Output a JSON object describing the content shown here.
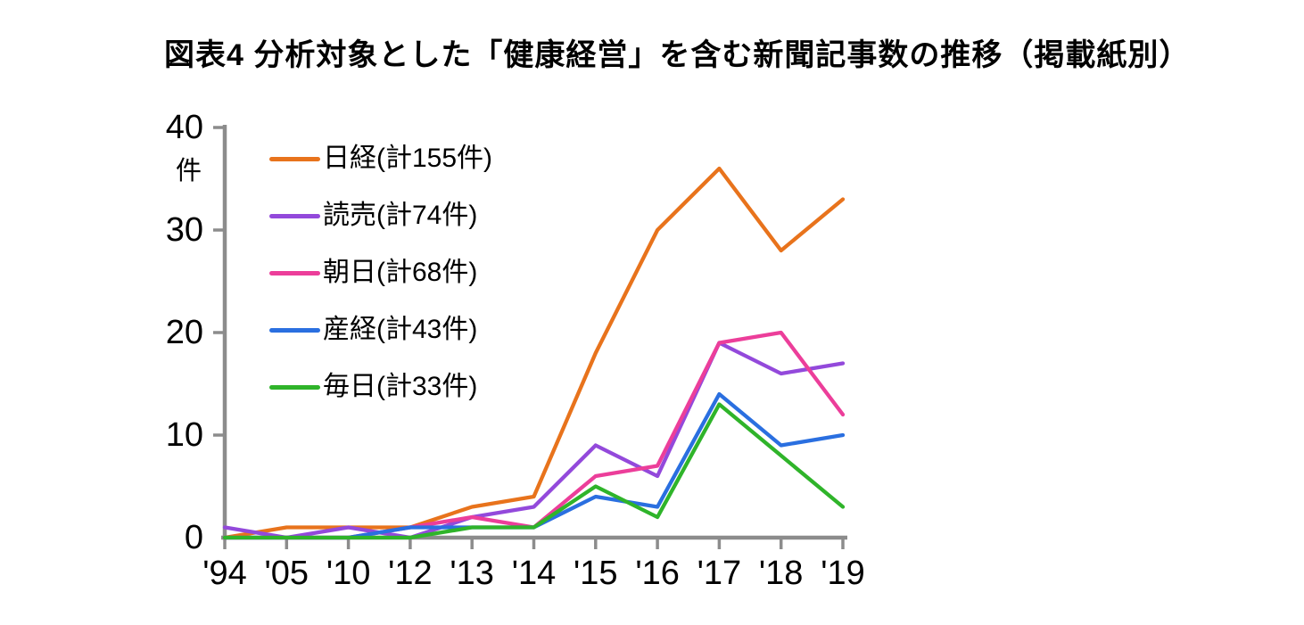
{
  "title": "図表4 分析対象とした「健康経営」を含む新聞記事数の推移（掲載紙別）",
  "chart_data": {
    "type": "line",
    "categories": [
      "'94",
      "'05",
      "'10",
      "'12",
      "'13",
      "'14",
      "'15",
      "'16",
      "'17",
      "'18",
      "'19"
    ],
    "unit_label": "件",
    "ylim": [
      0,
      40
    ],
    "ytick_step": 10,
    "grid": false,
    "legend_position": "inside-top-left",
    "axis_color": "#8C8C8C",
    "series": [
      {
        "name": "日経(計155件)",
        "color": "#E8731C",
        "values": [
          0,
          1,
          1,
          1,
          3,
          4,
          18,
          30,
          36,
          28,
          33
        ]
      },
      {
        "name": "読売(計74件)",
        "color": "#9349DB",
        "values": [
          1,
          0,
          1,
          0,
          2,
          3,
          9,
          6,
          19,
          16,
          17
        ]
      },
      {
        "name": "朝日(計68件)",
        "color": "#EC3E9A",
        "values": [
          0,
          0,
          0,
          1,
          2,
          1,
          6,
          7,
          19,
          20,
          12
        ]
      },
      {
        "name": "産経(計43件)",
        "color": "#2A6FE0",
        "values": [
          0,
          0,
          0,
          1,
          1,
          1,
          4,
          3,
          14,
          9,
          10
        ]
      },
      {
        "name": "毎日(計33件)",
        "color": "#2FB42A",
        "values": [
          0,
          0,
          0,
          0,
          1,
          1,
          5,
          2,
          13,
          8,
          3
        ]
      }
    ]
  }
}
